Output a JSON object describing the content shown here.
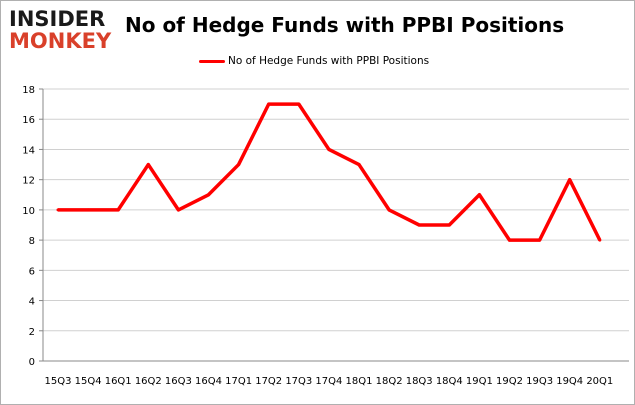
{
  "logo": {
    "line1": "INSIDER",
    "line2": "MONKEY"
  },
  "chart_data": {
    "type": "line",
    "title": "No of Hedge Funds with PPBI Positions",
    "xlabel": "",
    "ylabel": "",
    "categories": [
      "15Q3",
      "15Q4",
      "16Q1",
      "16Q2",
      "16Q3",
      "16Q4",
      "17Q1",
      "17Q2",
      "17Q3",
      "17Q4",
      "18Q1",
      "18Q2",
      "18Q3",
      "18Q4",
      "19Q1",
      "19Q2",
      "19Q3",
      "19Q4",
      "20Q1"
    ],
    "series": [
      {
        "name": "No of Hedge Funds with PPBI Positions",
        "color": "#ff0000",
        "values": [
          10,
          10,
          10,
          13,
          10,
          11,
          13,
          17,
          17,
          14,
          13,
          10,
          9,
          9,
          11,
          8,
          8,
          12,
          8
        ]
      }
    ],
    "ylim": [
      0,
      18
    ],
    "yticks": [
      0,
      2,
      4,
      6,
      8,
      10,
      12,
      14,
      16,
      18
    ],
    "grid": true,
    "legend": "top-center"
  }
}
